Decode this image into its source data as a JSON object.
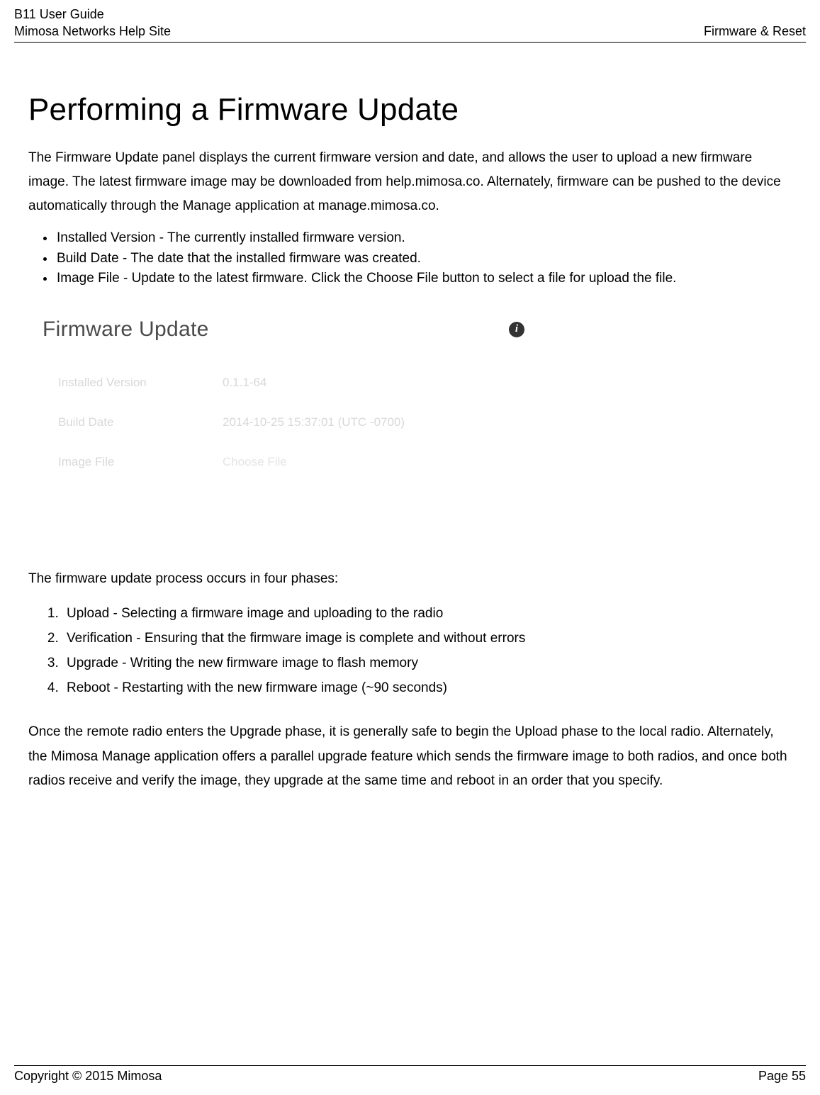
{
  "header": {
    "guide_title": "B11 User Guide",
    "site_name": "Mimosa Networks Help Site",
    "section": "Firmware & Reset"
  },
  "title": "Performing a Firmware Update",
  "intro": "The Firmware Update panel displays the current firmware version and date, and allows the user to upload a new firmware image. The latest firmware image may be downloaded from help.mimosa.co.  Alternately, firmware can be pushed to the device automatically through the Manage application at manage.mimosa.co.",
  "bullets": [
    "Installed Version - The currently installed firmware version.",
    "Build Date - The date that the installed firmware was created.",
    "Image File - Update to the latest firmware. Click the Choose File button to select a file for upload the file."
  ],
  "panel": {
    "title": "Firmware Update",
    "info_glyph": "i",
    "rows": {
      "installed_version": {
        "label": "Installed Version",
        "value": "0.1.1-64"
      },
      "build_date": {
        "label": "Build Date",
        "value": "2014-10-25 15:37:01 (UTC -0700)"
      },
      "image_file": {
        "label": "Image File",
        "value": "Choose File"
      }
    }
  },
  "phases_intro": "The firmware update process occurs in four phases:",
  "phases": [
    "Upload - Selecting a firmware image and uploading to the radio",
    "Verification - Ensuring that the firmware image is complete and without errors",
    "Upgrade - Writing the new firmware image to flash memory",
    "Reboot - Restarting with the new firmware image (~90 seconds)"
  ],
  "closing": "Once the remote radio enters the Upgrade phase, it is generally safe to begin the Upload phase to the local radio. Alternately, the Mimosa Manage application offers a parallel upgrade feature which sends the firmware image to both radios, and once both radios receive and verify the image, they upgrade at the same time and reboot in an order that you specify.",
  "footer": {
    "copyright": "Copyright © 2015 Mimosa",
    "page": "Page 55"
  },
  "colors": {
    "text": "#000000",
    "panel_title": "#4a4a4a",
    "panel_faded": "#d8d8d8",
    "panel_faded_light": "#e4e4e4",
    "icon_bg": "#333333",
    "background": "#ffffff"
  }
}
